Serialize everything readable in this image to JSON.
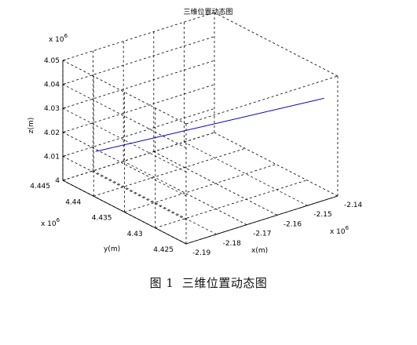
{
  "figure": {
    "caption_number": "图 1",
    "caption_text": "三维位置动态图"
  },
  "chart_data": {
    "type": "line3d",
    "title": "三维位置动态图",
    "xlabel": "x(m)",
    "ylabel": "y(m)",
    "zlabel": "z(m)",
    "x_scale_label": "x 10",
    "x_scale_exp": "6",
    "y_scale_label": "x 10",
    "y_scale_exp": "6",
    "z_scale_label": "x 10",
    "z_scale_exp": "6",
    "xlim": [
      -2.19,
      -2.14
    ],
    "ylim": [
      4.425,
      4.445
    ],
    "zlim": [
      4.0,
      4.05
    ],
    "x_ticks": [
      -2.19,
      -2.18,
      -2.17,
      -2.16,
      -2.15,
      -2.14
    ],
    "x_tick_labels": [
      "-2.19",
      "-2.18",
      "-2.17",
      "-2.16",
      "-2.15",
      "-2.14"
    ],
    "y_ticks": [
      4.425,
      4.43,
      4.435,
      4.44,
      4.445
    ],
    "y_tick_labels": [
      "4.425",
      "4.43",
      "4.435",
      "4.44",
      "4.445"
    ],
    "z_ticks": [
      4.0,
      4.01,
      4.02,
      4.03,
      4.04,
      4.05
    ],
    "z_tick_labels": [
      "4",
      "4.01",
      "4.02",
      "4.03",
      "4.04",
      "4.05"
    ],
    "grid": true,
    "series": [
      {
        "color": "#0000cc",
        "points": [
          {
            "x": -2.1847,
            "y": 4.4423,
            "z": 4.0135
          },
          {
            "x": -2.1412,
            "y": 4.4266,
            "z": 4.0391
          }
        ]
      }
    ]
  }
}
